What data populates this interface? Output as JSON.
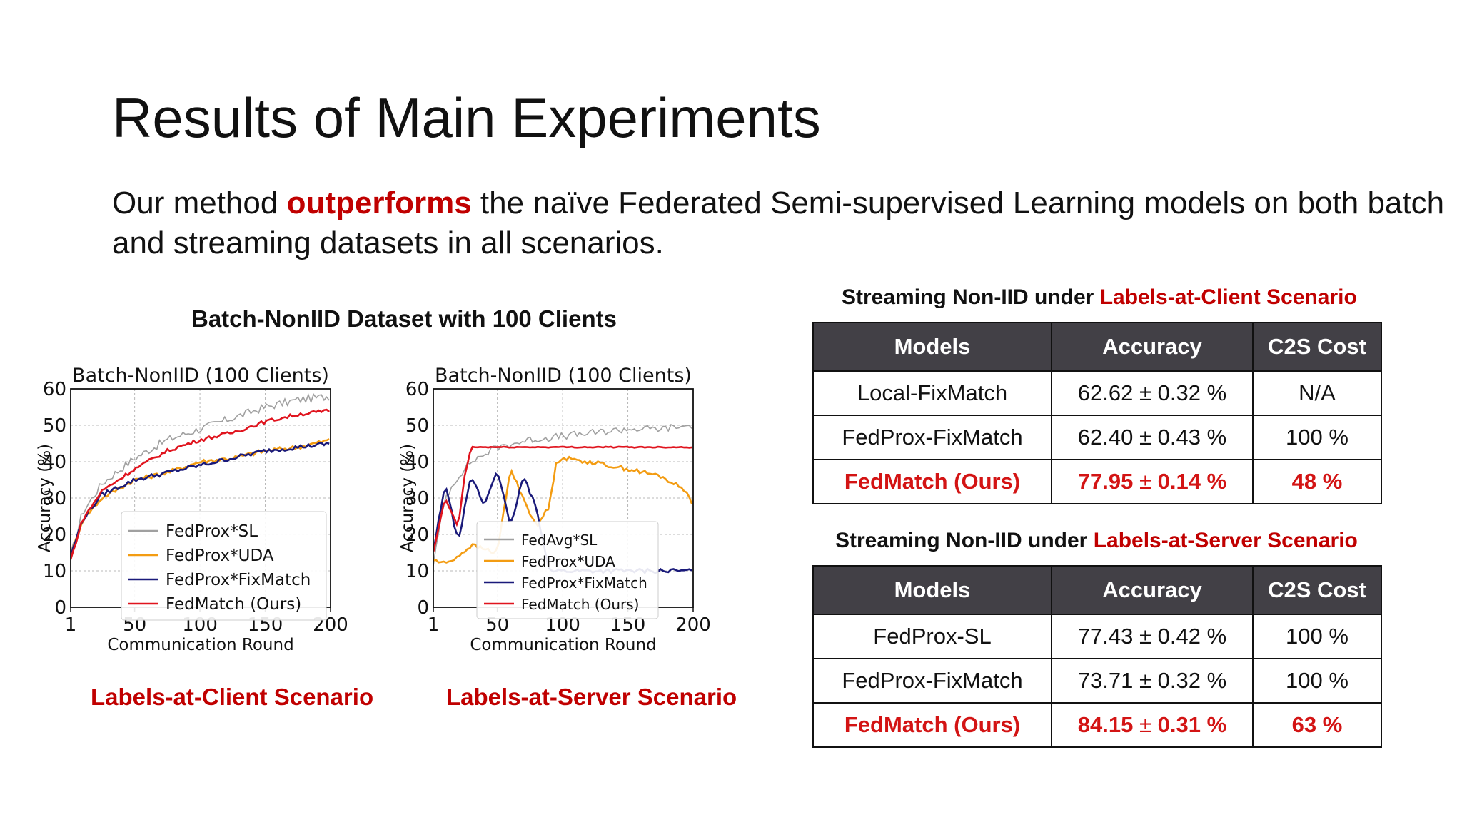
{
  "slide": {
    "title": "Results of Main Experiments",
    "subtitle": {
      "pre": "Our method ",
      "highlight": "outperforms",
      "post": " the naïve Federated Semi-supervised Learning models on both batch and streaming datasets in all scenarios."
    }
  },
  "batch_section": {
    "heading": "Batch-NonIID Dataset with 100 Clients",
    "captions": [
      "Labels-at-Client Scenario",
      "Labels-at-Server Scenario"
    ]
  },
  "colors": {
    "accent_red": "#c00000",
    "table_header_bg": "#424046",
    "series": {
      "sl": "#a0a0a0",
      "uda": "#f39c12",
      "fixmatch": "#1a1a7a",
      "fedmatch": "#e0141e"
    }
  },
  "chart_data": [
    {
      "type": "line",
      "title": "Batch-NonIID (100 Clients)",
      "xlabel": "Communication Round",
      "ylabel": "Accuracy (%)",
      "xlim": [
        1,
        200
      ],
      "ylim": [
        0,
        60
      ],
      "xticks": [
        "1",
        "50",
        "100",
        "150",
        "200"
      ],
      "yticks": [
        "0",
        "10",
        "20",
        "30",
        "40",
        "50",
        "60"
      ],
      "grid": true,
      "legend_position": "lower-center",
      "series": [
        {
          "name": "FedProx*SL",
          "color": "#a0a0a0",
          "x": [
            1,
            10,
            25,
            50,
            75,
            100,
            125,
            150,
            175,
            200
          ],
          "y": [
            14,
            26,
            34,
            41,
            46,
            49,
            52,
            55,
            57,
            58
          ]
        },
        {
          "name": "FedProx*UDA",
          "color": "#f39c12",
          "x": [
            1,
            10,
            25,
            50,
            75,
            100,
            125,
            150,
            175,
            200
          ],
          "y": [
            14,
            24,
            30,
            35,
            37,
            40,
            41,
            43,
            44,
            46
          ]
        },
        {
          "name": "FedProx*FixMatch",
          "color": "#1a1a7a",
          "x": [
            1,
            10,
            25,
            50,
            75,
            100,
            125,
            150,
            175,
            200
          ],
          "y": [
            14,
            24,
            31,
            35,
            37,
            39,
            41,
            43,
            44,
            45
          ]
        },
        {
          "name": "FedMatch (Ours)",
          "color": "#e0141e",
          "x": [
            1,
            10,
            25,
            50,
            75,
            100,
            125,
            150,
            175,
            200
          ],
          "y": [
            13,
            24,
            32,
            38,
            43,
            46,
            48,
            51,
            53,
            54
          ]
        }
      ]
    },
    {
      "type": "line",
      "title": "Batch-NonIID (100 Clients)",
      "xlabel": "Communication Round",
      "ylabel": "Accuracy (%)",
      "xlim": [
        1,
        200
      ],
      "ylim": [
        0,
        60
      ],
      "xticks": [
        "1",
        "50",
        "100",
        "150",
        "200"
      ],
      "yticks": [
        "0",
        "10",
        "20",
        "30",
        "40",
        "50",
        "60"
      ],
      "grid": true,
      "legend_position": "lower-center",
      "series": [
        {
          "name": "FedAvg*SL",
          "color": "#a0a0a0",
          "x": [
            1,
            10,
            20,
            30,
            50,
            75,
            100,
            125,
            150,
            175,
            200
          ],
          "y": [
            12,
            30,
            36,
            40,
            44,
            46,
            47,
            48,
            49,
            49,
            50
          ]
        },
        {
          "name": "FedProx*UDA",
          "color": "#f39c12",
          "x": [
            1,
            10,
            20,
            30,
            50,
            60,
            80,
            90,
            95,
            100,
            120,
            150,
            175,
            195,
            200
          ],
          "y": [
            13,
            12,
            14,
            17,
            15,
            38,
            22,
            28,
            40,
            41,
            40,
            38,
            36,
            32,
            27
          ]
        },
        {
          "name": "FedProx*FixMatch",
          "color": "#1a1a7a",
          "x": [
            1,
            10,
            20,
            30,
            40,
            50,
            60,
            70,
            80,
            90,
            150,
            200
          ],
          "y": [
            15,
            34,
            18,
            36,
            28,
            38,
            22,
            36,
            27,
            10,
            10,
            10
          ]
        },
        {
          "name": "FedMatch (Ours)",
          "color": "#e0141e",
          "x": [
            1,
            10,
            20,
            25,
            30,
            50,
            100,
            150,
            200
          ],
          "y": [
            15,
            30,
            22,
            36,
            44,
            44,
            44,
            44,
            44
          ]
        }
      ]
    }
  ],
  "tables": [
    {
      "caption_pre": "Streaming Non-IID under ",
      "caption_highlight": "Labels-at-Client Scenario",
      "headers": [
        "Models",
        "Accuracy",
        "C2S Cost"
      ],
      "rows": [
        {
          "model": "Local-FixMatch",
          "acc_mean": "62.62",
          "acc_pm": "±",
          "acc_std": "0.32",
          "acc_unit": "%",
          "cost": "N/A",
          "ours": false
        },
        {
          "model": "FedProx-FixMatch",
          "acc_mean": "62.40",
          "acc_pm": "±",
          "acc_std": "0.43",
          "acc_unit": "%",
          "cost": "100 %",
          "ours": false
        },
        {
          "model": "FedMatch (Ours)",
          "acc_mean": "77.95",
          "acc_pm": "±",
          "acc_std": "0.14",
          "acc_unit": "%",
          "cost": "48 %",
          "ours": true
        }
      ]
    },
    {
      "caption_pre": "Streaming Non-IID under ",
      "caption_highlight": "Labels-at-Server Scenario",
      "headers": [
        "Models",
        "Accuracy",
        "C2S Cost"
      ],
      "rows": [
        {
          "model": "FedProx-SL",
          "acc_mean": "77.43",
          "acc_pm": "±",
          "acc_std": "0.42",
          "acc_unit": "%",
          "cost": "100 %",
          "ours": false
        },
        {
          "model": "FedProx-FixMatch",
          "acc_mean": "73.71",
          "acc_pm": "±",
          "acc_std": "0.32",
          "acc_unit": "%",
          "cost": "100 %",
          "ours": false
        },
        {
          "model": "FedMatch (Ours)",
          "acc_mean": "84.15",
          "acc_pm": "±",
          "acc_std": "0.31",
          "acc_unit": "%",
          "cost": "63 %",
          "ours": true
        }
      ]
    }
  ]
}
